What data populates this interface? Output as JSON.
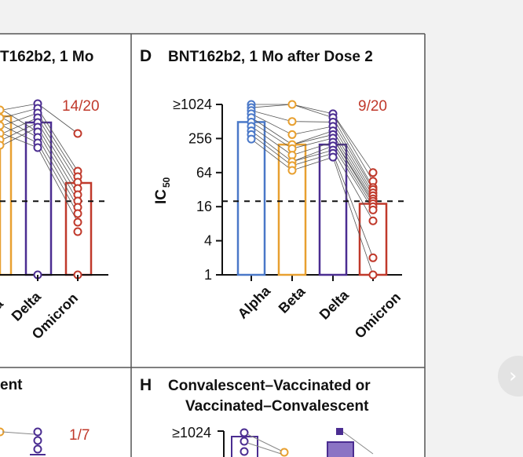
{
  "colors": {
    "alpha": "#4a78c8",
    "beta": "#e8a030",
    "delta": "#4b2d91",
    "omicron": "#c0392b",
    "frame": "#555555",
    "background": "#ffffff"
  },
  "panels": {
    "c": {
      "title": "T162b2, 1 Mo",
      "ratio": "14/20",
      "categories": [
        "a",
        "Delta",
        "Omicron"
      ]
    },
    "d": {
      "letter": "D",
      "title": "BNT162b2, 1 Mo after Dose 2",
      "ratio": "9/20",
      "ylabel": "IC",
      "ylabel_sub": "50"
    },
    "g": {
      "title": "ent",
      "ratio": "1/7"
    },
    "h": {
      "letter": "H",
      "title_line1": "Convalescent–Vaccinated or",
      "title_line2": "Vaccinated–Convalescent",
      "tick_top": "≥1024"
    }
  },
  "chart_data": {
    "type": "bar",
    "title": "BNT162b2, 1 Mo after Dose 2",
    "ylabel": "IC50",
    "yscale": "log2",
    "ylim": [
      1,
      1024
    ],
    "yticks": [
      "≥1024",
      "256",
      "64",
      "16",
      "4",
      "1"
    ],
    "ytick_values": [
      1024,
      256,
      64,
      16,
      4,
      1
    ],
    "threshold": 20,
    "categories": [
      "Alpha",
      "Beta",
      "Delta",
      "Omicron"
    ],
    "bar_values": [
      500,
      200,
      200,
      18
    ],
    "points": {
      "Alpha": [
        1024,
        900,
        800,
        700,
        600,
        500,
        420,
        350,
        300,
        250
      ],
      "Beta": [
        1024,
        512,
        300,
        200,
        170,
        130,
        100,
        85,
        70
      ],
      "Delta": [
        700,
        600,
        500,
        420,
        350,
        300,
        260,
        220,
        190,
        160,
        140,
        120
      ],
      "Omicron": [
        64,
        45,
        35,
        32,
        28,
        25,
        22,
        20,
        18,
        16,
        14,
        9,
        2,
        1
      ]
    },
    "fraction_label": "9/20"
  },
  "nav": {
    "next_icon": "chevron-right-icon",
    "next_glyph": "›"
  }
}
